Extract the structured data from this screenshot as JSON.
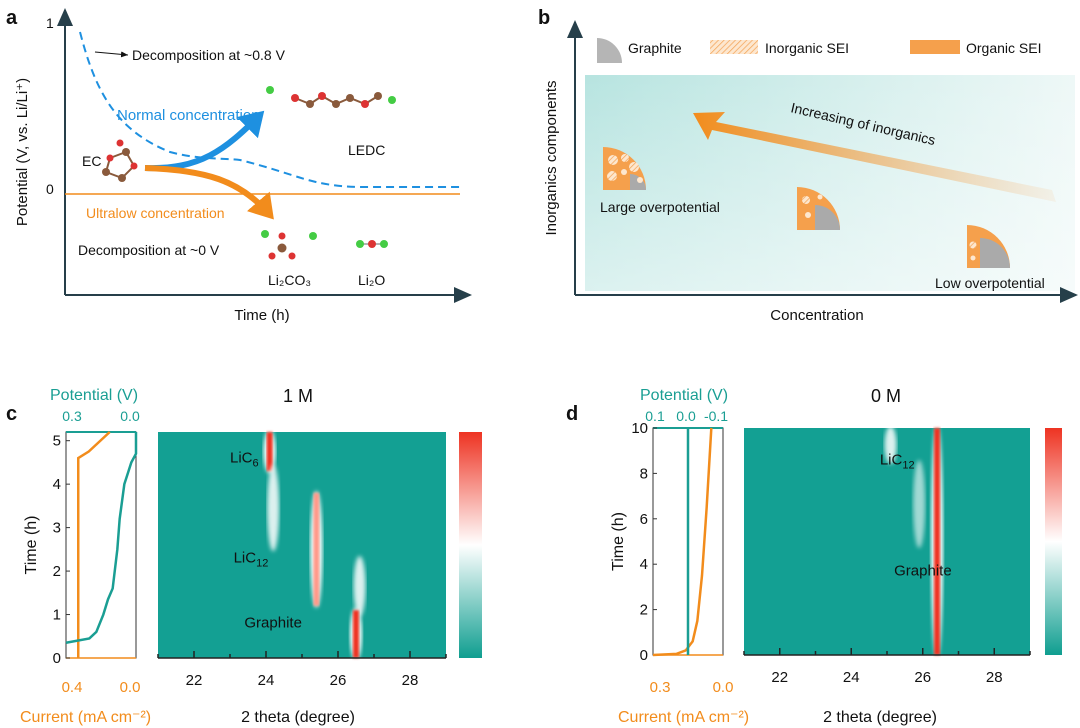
{
  "panel_a": {
    "label": "a",
    "ylabel": "Potential (V, vs. Li/Li⁺)",
    "xlabel": "Time (h)",
    "y_ticks": [
      "1",
      "0"
    ],
    "annot_08v": "Decomposition at ~0.8 V",
    "normal": "Normal concentration",
    "ultralow": "Ultralow concentration",
    "annot_0v": "Decomposition at ~0 V",
    "ec": "EC",
    "ledc": "LEDC",
    "li2co3": "Li₂CO₃",
    "li2o": "Li₂O"
  },
  "panel_b": {
    "label": "b",
    "ylabel": "Inorganics components",
    "xlabel": "Concentration",
    "legend": [
      "Graphite",
      "Inorganic SEI",
      "Organic SEI"
    ],
    "arrow_text": "Increasing of inorganics",
    "large": "Large overpotential",
    "low": "Low overpotential"
  },
  "colors": {
    "teal": "#1a9e93",
    "orange": "#f28c1c",
    "blue": "#1e90e0",
    "red": "#ee3322"
  },
  "chart_data": [
    {
      "type": "heatmap",
      "panel": "c",
      "title": "1 M",
      "xlabel": "2 theta (degree)",
      "ylabel": "Time (h)",
      "xlim": [
        21,
        29
      ],
      "ylim": [
        0,
        5.2
      ],
      "x_ticks": [
        "22",
        "24",
        "26",
        "28"
      ],
      "y_ticks": [
        "0",
        "1",
        "2",
        "3",
        "4",
        "5"
      ],
      "top_axis_label": "Potential (V)",
      "top_ticks": [
        "0.3",
        "0.0"
      ],
      "bottom_axis_label": "Current (mA cm⁻²)",
      "bottom_ticks": [
        "0.4",
        "0.0"
      ],
      "potential_range": [
        0.3,
        0.0
      ],
      "current_range": [
        0.4,
        0.0
      ],
      "potential_curve": [
        [
          0.3,
          0.35
        ],
        [
          0.2,
          0.45
        ],
        [
          0.17,
          0.6
        ],
        [
          0.14,
          1.0
        ],
        [
          0.12,
          1.35
        ],
        [
          0.1,
          1.6
        ],
        [
          0.08,
          2.5
        ],
        [
          0.07,
          3.2
        ],
        [
          0.05,
          4.0
        ],
        [
          0.02,
          4.5
        ],
        [
          0.0,
          4.7
        ],
        [
          0.0,
          5.2
        ]
      ],
      "current_curve": [
        [
          0.33,
          0
        ],
        [
          0.33,
          4.6
        ],
        [
          0.27,
          4.75
        ],
        [
          0.15,
          5.2
        ]
      ],
      "peaks": [
        {
          "x": 24.1,
          "t0": 4.3,
          "t1": 5.2,
          "intensity": "high"
        },
        {
          "x": 24.2,
          "t0": 2.5,
          "t1": 4.4,
          "intensity": "low"
        },
        {
          "x": 25.4,
          "t0": 1.2,
          "t1": 3.8,
          "intensity": "medium"
        },
        {
          "x": 26.6,
          "t0": 1.0,
          "t1": 2.3,
          "intensity": "low"
        },
        {
          "x": 26.5,
          "t0": 0.0,
          "t1": 1.1,
          "intensity": "high"
        }
      ],
      "annotations": [
        {
          "text": "LiC",
          "sub": "6",
          "x": 23.0,
          "t": 4.5
        },
        {
          "text": "LiC",
          "sub": "12",
          "x": 23.1,
          "t": 2.2
        },
        {
          "text": "Graphite",
          "x": 23.4,
          "t": 0.7
        }
      ]
    },
    {
      "type": "heatmap",
      "panel": "d",
      "title": "0 M",
      "xlabel": "2 theta (degree)",
      "ylabel": "Time (h)",
      "xlim": [
        21,
        29
      ],
      "ylim": [
        0,
        10
      ],
      "x_ticks": [
        "22",
        "24",
        "26",
        "28"
      ],
      "y_ticks": [
        "0",
        "2",
        "4",
        "6",
        "8",
        "10"
      ],
      "top_axis_label": "Potential (V)",
      "top_ticks": [
        "0.1",
        "0.0",
        "-0.1"
      ],
      "bottom_axis_label": "Current (mA cm⁻²)",
      "bottom_ticks": [
        "0.3",
        "0.0"
      ],
      "potential_range": [
        0.1,
        -0.1
      ],
      "current_range": [
        0.3,
        0.0
      ],
      "potential_curve": [
        [
          0.0,
          0
        ],
        [
          0.0,
          10
        ]
      ],
      "current_curve": [
        [
          0.3,
          0.0
        ],
        [
          0.2,
          0.05
        ],
        [
          0.16,
          0.2
        ],
        [
          0.13,
          0.6
        ],
        [
          0.11,
          1.5
        ],
        [
          0.09,
          3.5
        ],
        [
          0.07,
          6.5
        ],
        [
          0.05,
          10
        ]
      ],
      "peaks": [
        {
          "x": 25.1,
          "t0": 8.5,
          "t1": 10,
          "intensity": "low"
        },
        {
          "x": 25.9,
          "t0": 4.8,
          "t1": 8.5,
          "intensity": "faint"
        },
        {
          "x": 26.4,
          "t0": 0,
          "t1": 10,
          "intensity": "high"
        }
      ],
      "annotations": [
        {
          "text": "LiC",
          "sub": "12",
          "x": 24.8,
          "t": 8.4
        },
        {
          "text": "Graphite",
          "x": 25.2,
          "t": 3.5
        }
      ]
    }
  ]
}
